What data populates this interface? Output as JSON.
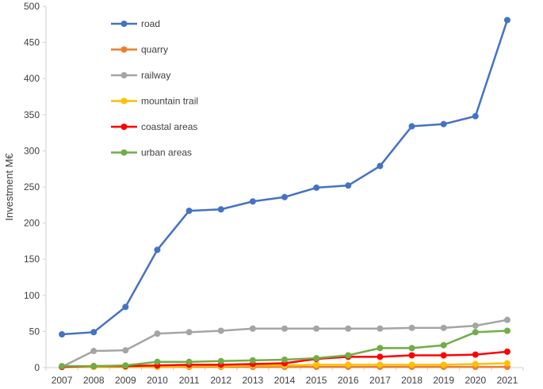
{
  "chart_data": {
    "type": "line",
    "ylabel": "Investment M€",
    "ylim": [
      0,
      500
    ],
    "y_ticks": [
      0,
      50,
      100,
      150,
      200,
      250,
      300,
      350,
      400,
      450,
      500
    ],
    "x": [
      "2007",
      "2008",
      "2009",
      "2010",
      "2011",
      "2012",
      "2013",
      "2014",
      "2015",
      "2016",
      "2017",
      "2018",
      "2019",
      "2020",
      "2021"
    ],
    "grid": false,
    "legend_position": "top-left",
    "series": [
      {
        "name": "road",
        "color": "#4472C4",
        "values": [
          46,
          49,
          84,
          163,
          217,
          219,
          230,
          236,
          249,
          252,
          279,
          334,
          337,
          348,
          481
        ]
      },
      {
        "name": "quarry",
        "color": "#ED7D31",
        "values": [
          1,
          1,
          1,
          1,
          1,
          1,
          1,
          1,
          1,
          1,
          1,
          1,
          1,
          1,
          1
        ]
      },
      {
        "name": "railway",
        "color": "#A5A5A5",
        "values": [
          1,
          23,
          24,
          47,
          49,
          51,
          54,
          54,
          54,
          54,
          54,
          55,
          55,
          58,
          66
        ]
      },
      {
        "name": "mountain trail",
        "color": "#FFC000",
        "values": [
          1,
          1,
          1,
          1,
          2,
          2,
          3,
          3,
          4,
          4,
          4,
          4,
          4,
          5,
          6
        ]
      },
      {
        "name": "coastal areas",
        "color": "#FF0000",
        "values": [
          1,
          2,
          2,
          3,
          4,
          4,
          5,
          6,
          12,
          15,
          15,
          17,
          17,
          18,
          22
        ]
      },
      {
        "name": "urban areas",
        "color": "#70AD47",
        "values": [
          2,
          2,
          3,
          8,
          8,
          9,
          10,
          11,
          13,
          17,
          27,
          27,
          31,
          49,
          51
        ]
      }
    ]
  }
}
